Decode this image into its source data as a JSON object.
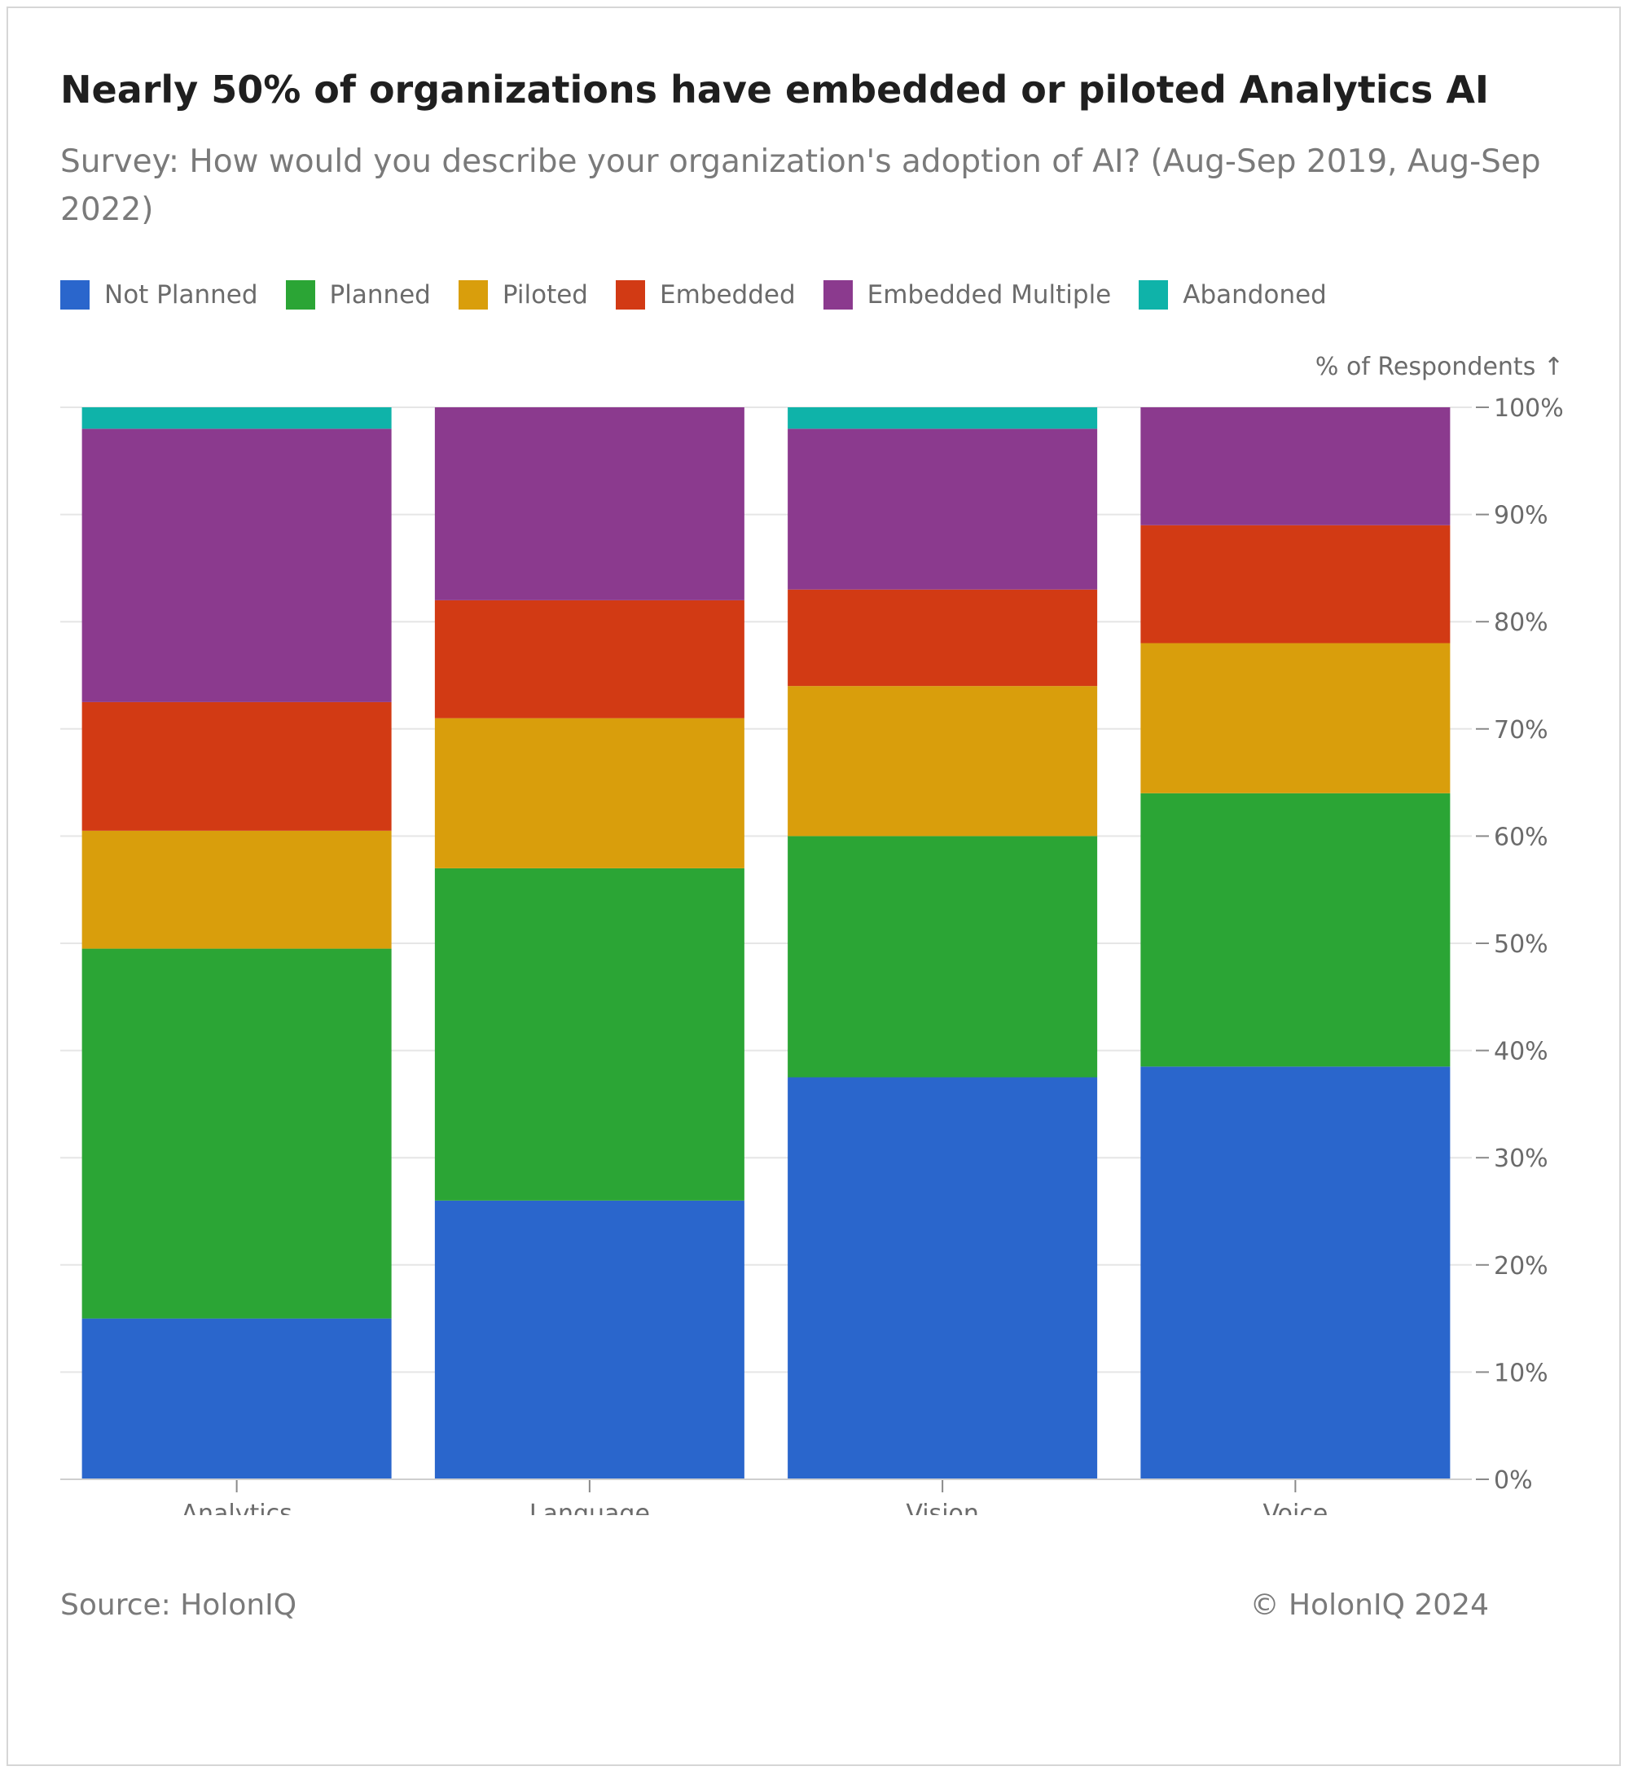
{
  "chart_data": {
    "type": "bar",
    "stacked": true,
    "title": "Nearly 50% of organizations have embedded or piloted Analytics AI",
    "subtitle": "Survey: How would you describe your organization's adoption of AI? (Aug-Sep 2019, Aug-Sep 2022)",
    "ylabel": "% of Respondents ↑",
    "xlabel": "",
    "ylim": [
      0,
      100
    ],
    "yticks": [
      0,
      10,
      20,
      30,
      40,
      50,
      60,
      70,
      80,
      90,
      100
    ],
    "ytick_labels": [
      "0%",
      "10%",
      "20%",
      "30%",
      "40%",
      "50%",
      "60%",
      "70%",
      "80%",
      "90%",
      "100%"
    ],
    "categories": [
      "Analytics",
      "Language",
      "Vision",
      "Voice"
    ],
    "series": [
      {
        "name": "Not Planned",
        "color": "#2a66cc",
        "values": [
          15,
          26,
          37.5,
          38.5
        ]
      },
      {
        "name": "Planned",
        "color": "#2ba535",
        "values": [
          34.5,
          31,
          22.5,
          25.5
        ]
      },
      {
        "name": "Piloted",
        "color": "#d99e0c",
        "values": [
          11,
          14,
          14,
          14
        ]
      },
      {
        "name": "Embedded",
        "color": "#d23a14",
        "values": [
          12,
          11,
          9,
          11
        ]
      },
      {
        "name": "Embedded Multiple",
        "color": "#8b3a8e",
        "values": [
          25.5,
          18,
          15,
          11
        ]
      },
      {
        "name": "Abandoned",
        "color": "#0fb3a9",
        "values": [
          2,
          0,
          2,
          0
        ]
      }
    ],
    "legend_position": "top-left",
    "grid": true
  },
  "footer": {
    "source": "Source: HolonIQ",
    "copyright": "© HolonIQ 2024"
  }
}
